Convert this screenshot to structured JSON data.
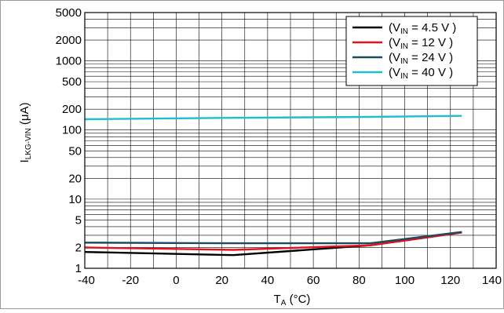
{
  "chart_data": {
    "type": "line",
    "xlabel": {
      "main": "T",
      "sub": "A",
      "unit": " (°C)"
    },
    "ylabel": {
      "main": "I",
      "sub": "LKG-VIN",
      "unit": " (μA)"
    },
    "xlim": [
      -40,
      140
    ],
    "ylim": [
      1,
      5000
    ],
    "yscale": "log",
    "grid": true,
    "legend_position": "top-right",
    "x_ticks": [
      -40,
      -20,
      0,
      20,
      40,
      60,
      80,
      100,
      120,
      140
    ],
    "x_tick_labels": [
      "-40",
      "-20",
      "0",
      "20",
      "40",
      "60",
      "80",
      "100",
      "120",
      "140"
    ],
    "y_ticks": [
      1,
      2,
      5,
      10,
      20,
      50,
      100,
      200,
      500,
      1000,
      2000,
      5000
    ],
    "y_tick_labels": [
      "1",
      "2",
      "5",
      "10",
      "20",
      "50",
      "100",
      "200",
      "500",
      "1000",
      "2000",
      "5000"
    ],
    "series": [
      {
        "legend_pre": "(V",
        "legend_sub": "IN",
        "legend_post": " = 4.5 V )",
        "color": "#000000",
        "x": [
          -40,
          25,
          85,
          125
        ],
        "y": [
          1.72,
          1.55,
          2.15,
          3.3
        ]
      },
      {
        "legend_pre": "(V",
        "legend_sub": "IN",
        "legend_post": " = 12 V )",
        "color": "#e8101a",
        "x": [
          -40,
          25,
          85,
          125
        ],
        "y": [
          2.0,
          1.85,
          2.15,
          3.3
        ]
      },
      {
        "legend_pre": "(V",
        "legend_sub": "IN",
        "legend_post": " = 24 V )",
        "color": "#1e4a5c",
        "x": [
          -40,
          25,
          85,
          125
        ],
        "y": [
          2.35,
          2.3,
          2.3,
          3.35
        ]
      },
      {
        "legend_pre": "(V",
        "legend_sub": "IN",
        "legend_post": " = 40 V )",
        "color": "#1cbfcf",
        "x": [
          -40,
          25,
          85,
          125
        ],
        "y": [
          143,
          150,
          155,
          160
        ]
      }
    ]
  }
}
